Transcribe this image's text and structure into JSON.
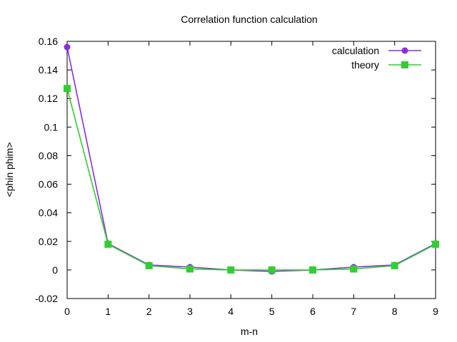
{
  "chart_data": {
    "type": "line",
    "title": "Correlation function calculation",
    "xlabel": "m-n",
    "ylabel": "<phin phim>",
    "xlim": [
      0,
      9
    ],
    "ylim": [
      -0.02,
      0.16
    ],
    "x_ticks": [
      "0",
      "1",
      "2",
      "3",
      "4",
      "5",
      "6",
      "7",
      "8",
      "9"
    ],
    "y_ticks": [
      "-0.02",
      "0",
      "0.02",
      "0.04",
      "0.06",
      "0.08",
      "0.1",
      "0.12",
      "0.14",
      "0.16"
    ],
    "x": [
      0,
      1,
      2,
      3,
      4,
      5,
      6,
      7,
      8,
      9
    ],
    "series": [
      {
        "name": "calculation",
        "color": "#8a2be2",
        "marker": "circle",
        "values": [
          0.156,
          0.0185,
          0.0035,
          0.002,
          0.0,
          -0.001,
          0.0,
          0.002,
          0.0035,
          0.0185
        ]
      },
      {
        "name": "theory",
        "color": "#32cd32",
        "marker": "square",
        "values": [
          0.127,
          0.018,
          0.003,
          0.0007,
          0.0,
          0.0,
          0.0,
          0.0007,
          0.003,
          0.018
        ]
      }
    ],
    "legend_position": "top-right",
    "grid": false
  }
}
